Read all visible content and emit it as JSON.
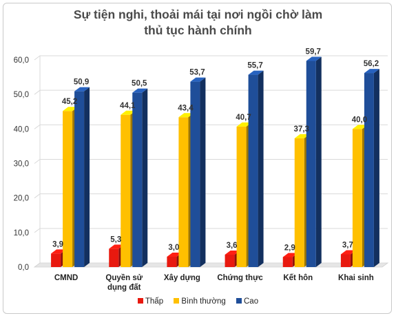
{
  "chart_data": {
    "type": "bar",
    "title_lines": [
      "Sự tiện nghi, thoải mái tại nơi ngồi chờ làm",
      "thủ tục hành chính"
    ],
    "categories": [
      [
        "CMND"
      ],
      [
        "Quyền sử",
        "dụng đất"
      ],
      [
        "Xây dựng"
      ],
      [
        "Chứng thực"
      ],
      [
        "Kết hôn"
      ],
      [
        "Khai sinh"
      ]
    ],
    "series": [
      {
        "name": "Thấp",
        "color": "#e8190f",
        "values": [
          3.9,
          5.3,
          3.0,
          3.6,
          2.9,
          3.7
        ],
        "labels": [
          "3,9",
          "5,3",
          "3,0",
          "3,6",
          "2,9",
          "3,7"
        ]
      },
      {
        "name": "Bình thường",
        "color": "#ffc000",
        "values": [
          45.2,
          44.1,
          43.4,
          40.7,
          37.3,
          40.0
        ],
        "labels": [
          "45,2",
          "44,1",
          "43,4",
          "40,7",
          "37,3",
          "40,0"
        ]
      },
      {
        "name": "Cao",
        "color": "#1f4e99",
        "values": [
          50.9,
          50.5,
          53.7,
          55.7,
          59.7,
          56.2
        ],
        "labels": [
          "50,9",
          "50,5",
          "53,7",
          "55,7",
          "59,7",
          "56,2"
        ]
      }
    ],
    "ylim": [
      0,
      60
    ],
    "yticks": [
      "0,0",
      "10,0",
      "20,0",
      "30,0",
      "40,0",
      "50,0",
      "60,0"
    ],
    "grid": true,
    "legend_position": "bottom"
  }
}
